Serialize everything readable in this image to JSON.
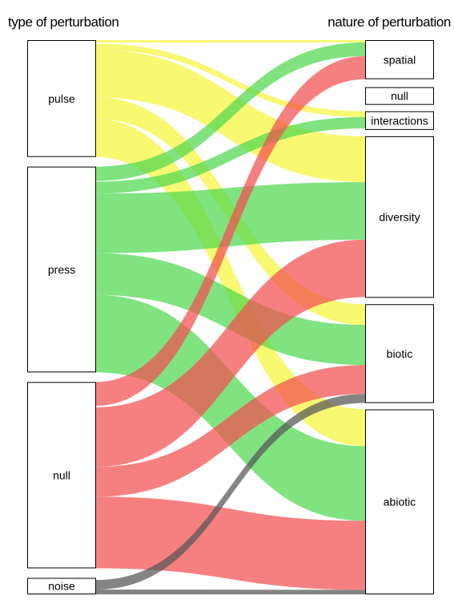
{
  "headers": {
    "left": "type of perturbation",
    "right": "nature of perturbation"
  },
  "left_nodes": [
    {
      "id": "pulse",
      "label": "pulse"
    },
    {
      "id": "press",
      "label": "press"
    },
    {
      "id": "null",
      "label": "null"
    },
    {
      "id": "noise",
      "label": "noise"
    }
  ],
  "right_nodes": [
    {
      "id": "spatial",
      "label": "spatial"
    },
    {
      "id": "null",
      "label": "null"
    },
    {
      "id": "interactions",
      "label": "interactions"
    },
    {
      "id": "diversity",
      "label": "diversity"
    },
    {
      "id": "biotic",
      "label": "biotic"
    },
    {
      "id": "abiotic",
      "label": "abiotic"
    }
  ],
  "colors": {
    "pulse": "#f5f53a",
    "press": "#4fd84f",
    "null": "#f24f4f",
    "noise": "#555555",
    "flow_opacity": 0.72
  },
  "flows": [
    {
      "from": "pulse",
      "to": "spatial",
      "value": 2
    },
    {
      "from": "pulse",
      "to": "null",
      "value": 1
    },
    {
      "from": "pulse",
      "to": "interactions",
      "value": 5
    },
    {
      "from": "pulse",
      "to": "diversity",
      "value": 40
    },
    {
      "from": "pulse",
      "to": "biotic",
      "value": 18
    },
    {
      "from": "pulse",
      "to": "abiotic",
      "value": 32
    },
    {
      "from": "press",
      "to": "spatial",
      "value": 12
    },
    {
      "from": "press",
      "to": "null",
      "value": 0.6
    },
    {
      "from": "press",
      "to": "interactions",
      "value": 10
    },
    {
      "from": "press",
      "to": "diversity",
      "value": 50
    },
    {
      "from": "press",
      "to": "biotic",
      "value": 35
    },
    {
      "from": "press",
      "to": "abiotic",
      "value": 65
    },
    {
      "from": "null",
      "to": "spatial",
      "value": 20
    },
    {
      "from": "null",
      "to": "null",
      "value": 0.6
    },
    {
      "from": "null",
      "to": "interactions",
      "value": 0.6
    },
    {
      "from": "null",
      "to": "diversity",
      "value": 50
    },
    {
      "from": "null",
      "to": "biotic",
      "value": 25
    },
    {
      "from": "null",
      "to": "abiotic",
      "value": 60
    },
    {
      "from": "noise",
      "to": "null",
      "value": 0.6
    },
    {
      "from": "noise",
      "to": "interactions",
      "value": 0.6
    },
    {
      "from": "noise",
      "to": "diversity",
      "value": 0.6
    },
    {
      "from": "noise",
      "to": "biotic",
      "value": 8
    },
    {
      "from": "noise",
      "to": "abiotic",
      "value": 4
    }
  ]
}
